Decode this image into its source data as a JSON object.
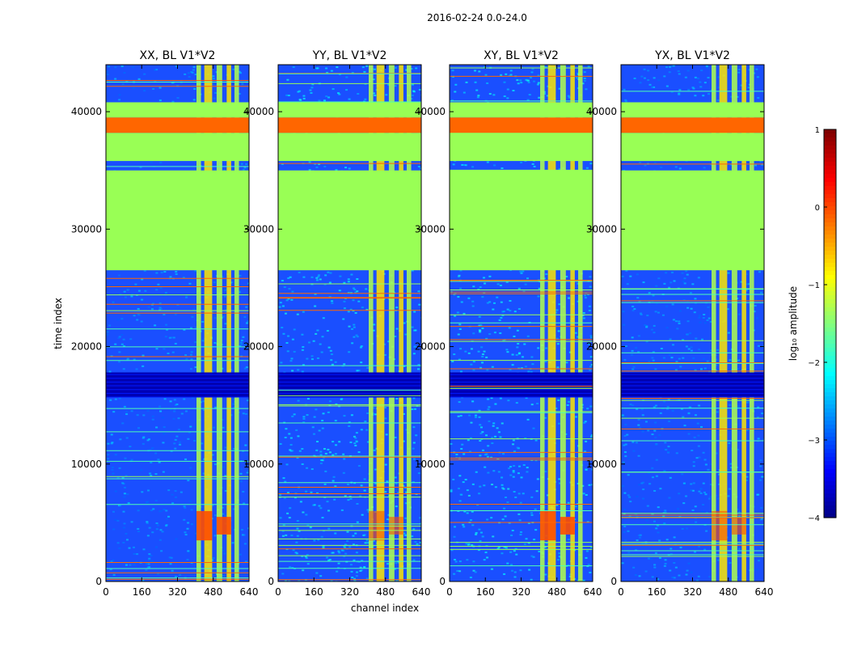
{
  "figure_title": "2016-02-24 0.0-24.0",
  "shared": {
    "xlabel": "channel index",
    "ylabel": "time index",
    "colorbar_label": "log₁₀ amplitude"
  },
  "chart_data": [
    {
      "type": "heatmap",
      "title": "XX, BL V1*V2",
      "xlabel": "channel index",
      "ylabel": "time index",
      "xlim": [
        0,
        640
      ],
      "ylim": [
        0,
        44000
      ],
      "xticks": [
        0,
        160,
        320,
        480,
        640
      ],
      "yticks": [
        0,
        10000,
        20000,
        30000,
        40000
      ],
      "rfi_channel_range": [
        400,
        600
      ]
    },
    {
      "type": "heatmap",
      "title": "YY, BL V1*V2",
      "xlabel": "channel index",
      "ylabel": "",
      "xlim": [
        0,
        640
      ],
      "ylim": [
        0,
        44000
      ],
      "xticks": [
        0,
        160,
        320,
        480,
        640
      ],
      "yticks": [
        0,
        10000,
        20000,
        30000,
        40000
      ],
      "rfi_channel_range": [
        400,
        600
      ]
    },
    {
      "type": "heatmap",
      "title": "XY, BL V1*V2",
      "xlabel": "channel index",
      "ylabel": "",
      "xlim": [
        0,
        640
      ],
      "ylim": [
        0,
        44000
      ],
      "xticks": [
        0,
        160,
        320,
        480,
        640
      ],
      "yticks": [
        0,
        10000,
        20000,
        30000,
        40000
      ],
      "rfi_channel_range": [
        400,
        600
      ]
    },
    {
      "type": "heatmap",
      "title": "YX, BL V1*V2",
      "xlabel": "channel index",
      "ylabel": "",
      "xlim": [
        0,
        640
      ],
      "ylim": [
        0,
        44000
      ],
      "xticks": [
        0,
        160,
        320,
        480,
        640
      ],
      "yticks": [
        0,
        10000,
        20000,
        30000,
        40000
      ],
      "rfi_channel_range": [
        400,
        600
      ]
    }
  ],
  "colorbar": {
    "label": "log₁₀ amplitude",
    "range": [
      -4,
      1
    ],
    "ticks": [
      1,
      0,
      -1,
      -2,
      -3,
      -4
    ],
    "tick_labels": [
      "1",
      "0",
      "−1",
      "−2",
      "−3",
      "−4"
    ],
    "colormap": "jet"
  },
  "time_bands": {
    "flagged_green": [
      [
        26500,
        35000
      ],
      [
        35800,
        38200
      ],
      [
        39500,
        40800
      ]
    ],
    "orange_band": [
      38200,
      39500
    ],
    "dark_gap": [
      15700,
      17800
    ]
  },
  "colors": {
    "flag_green": "#99ff55",
    "flag_orange": "#ff6600",
    "background_blue": "#1a4fff",
    "axes_edge": "#000000"
  }
}
